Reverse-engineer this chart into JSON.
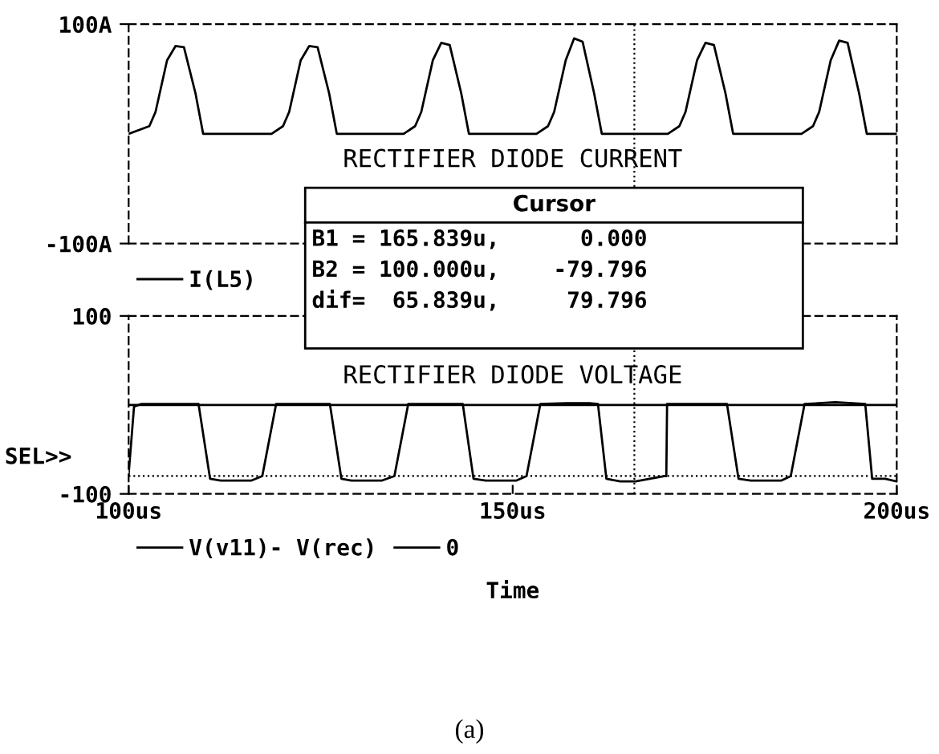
{
  "chart_data": [
    {
      "type": "line",
      "xlim": [
        100,
        200
      ],
      "ylim": [
        -100,
        100
      ],
      "yticks": [
        {
          "value": 100,
          "label": "100A"
        },
        {
          "value": -100,
          "label": "-100A"
        }
      ],
      "tick_labels": "y",
      "grid": false,
      "legend": "bottom left",
      "series": [
        {
          "name": "I(L5)",
          "color": "#000000",
          "x": [
            100,
            102.7,
            103.5,
            105.0,
            106.1,
            107.2,
            108.7,
            109.7,
            118.6,
            120.1,
            120.9,
            122.4,
            123.5,
            124.6,
            126.1,
            127.1,
            135.8,
            137.3,
            138.1,
            139.6,
            140.7,
            141.8,
            143.3,
            144.3,
            153.1,
            154.6,
            155.4,
            156.9,
            158.0,
            159.1,
            160.6,
            161.6,
            170.2,
            171.7,
            172.5,
            174.0,
            175.1,
            176.2,
            177.7,
            178.7,
            187.6,
            189.1,
            189.9,
            191.4,
            192.5,
            193.6,
            195.1,
            196.1,
            200
          ],
          "values": [
            0,
            7,
            20,
            67,
            80,
            79,
            37,
            0,
            0,
            7,
            20,
            67,
            80,
            79,
            37,
            0,
            0,
            7,
            20,
            67,
            83,
            81,
            37,
            0,
            0,
            7,
            20,
            67,
            87,
            84,
            37,
            0,
            0,
            7,
            20,
            67,
            83,
            81,
            37,
            0,
            0,
            7,
            20,
            67,
            85,
            83,
            37,
            0,
            0
          ]
        }
      ],
      "ref_lines": [
        {
          "axis": "x",
          "value": 165.839,
          "line_style": "dotted"
        }
      ],
      "annotations": [
        "RECTIFIER DIODE CURRENT",
        "Cursor",
        "B1 = 165.839u,      0.000",
        "B2 = 100.000u,    -79.796",
        "dif=  65.839u,     79.796"
      ]
    },
    {
      "type": "line",
      "xlim": [
        100,
        200
      ],
      "ylim": [
        -100,
        100
      ],
      "yticks": [
        100,
        -100
      ],
      "xticks": [
        {
          "value": 100,
          "label": "100us"
        },
        {
          "value": 150,
          "label": "150us"
        },
        {
          "value": 200,
          "label": "200us"
        }
      ],
      "xlabel": "Time",
      "grid": false,
      "legend": "bottom",
      "series": [
        {
          "name": "V(v11)- V(rec)",
          "color": "#000000",
          "x": [
            100,
            100.7,
            101.6,
            109.1,
            110.6,
            112,
            116,
            117.4,
            119.2,
            126.2,
            127.7,
            129,
            133,
            134.6,
            136.4,
            143.5,
            144.9,
            146.5,
            150.5,
            151.8,
            153.6,
            157,
            160,
            161.1,
            162.2,
            164,
            166,
            169.7,
            170,
            170.1,
            177.9,
            179.4,
            181,
            185,
            186.2,
            188,
            192,
            195.9,
            196.8,
            198.5,
            200
          ],
          "values": [
            -78,
            -2,
            1,
            1,
            -83,
            -85,
            -85,
            -80,
            1,
            1,
            -83,
            -85,
            -85,
            -80,
            1,
            1,
            -83,
            -85,
            -85,
            -80,
            1,
            2,
            2,
            1,
            -83,
            -86,
            -86,
            -80,
            -80,
            1,
            1,
            -83,
            -85,
            -85,
            -80,
            1,
            3,
            1,
            -83,
            -83,
            -86
          ]
        },
        {
          "name": "0",
          "color": "#000000",
          "x": [
            100,
            200
          ],
          "values": [
            0,
            0
          ]
        }
      ],
      "ref_lines": [
        {
          "axis": "x",
          "value": 165.839,
          "line_style": "dotted"
        },
        {
          "axis": "y",
          "value": -79.796,
          "line_style": "dotted"
        }
      ],
      "annotations": [
        "RECTIFIER DIODE VOLTAGE",
        "SEL>>",
        "(a)"
      ]
    }
  ]
}
